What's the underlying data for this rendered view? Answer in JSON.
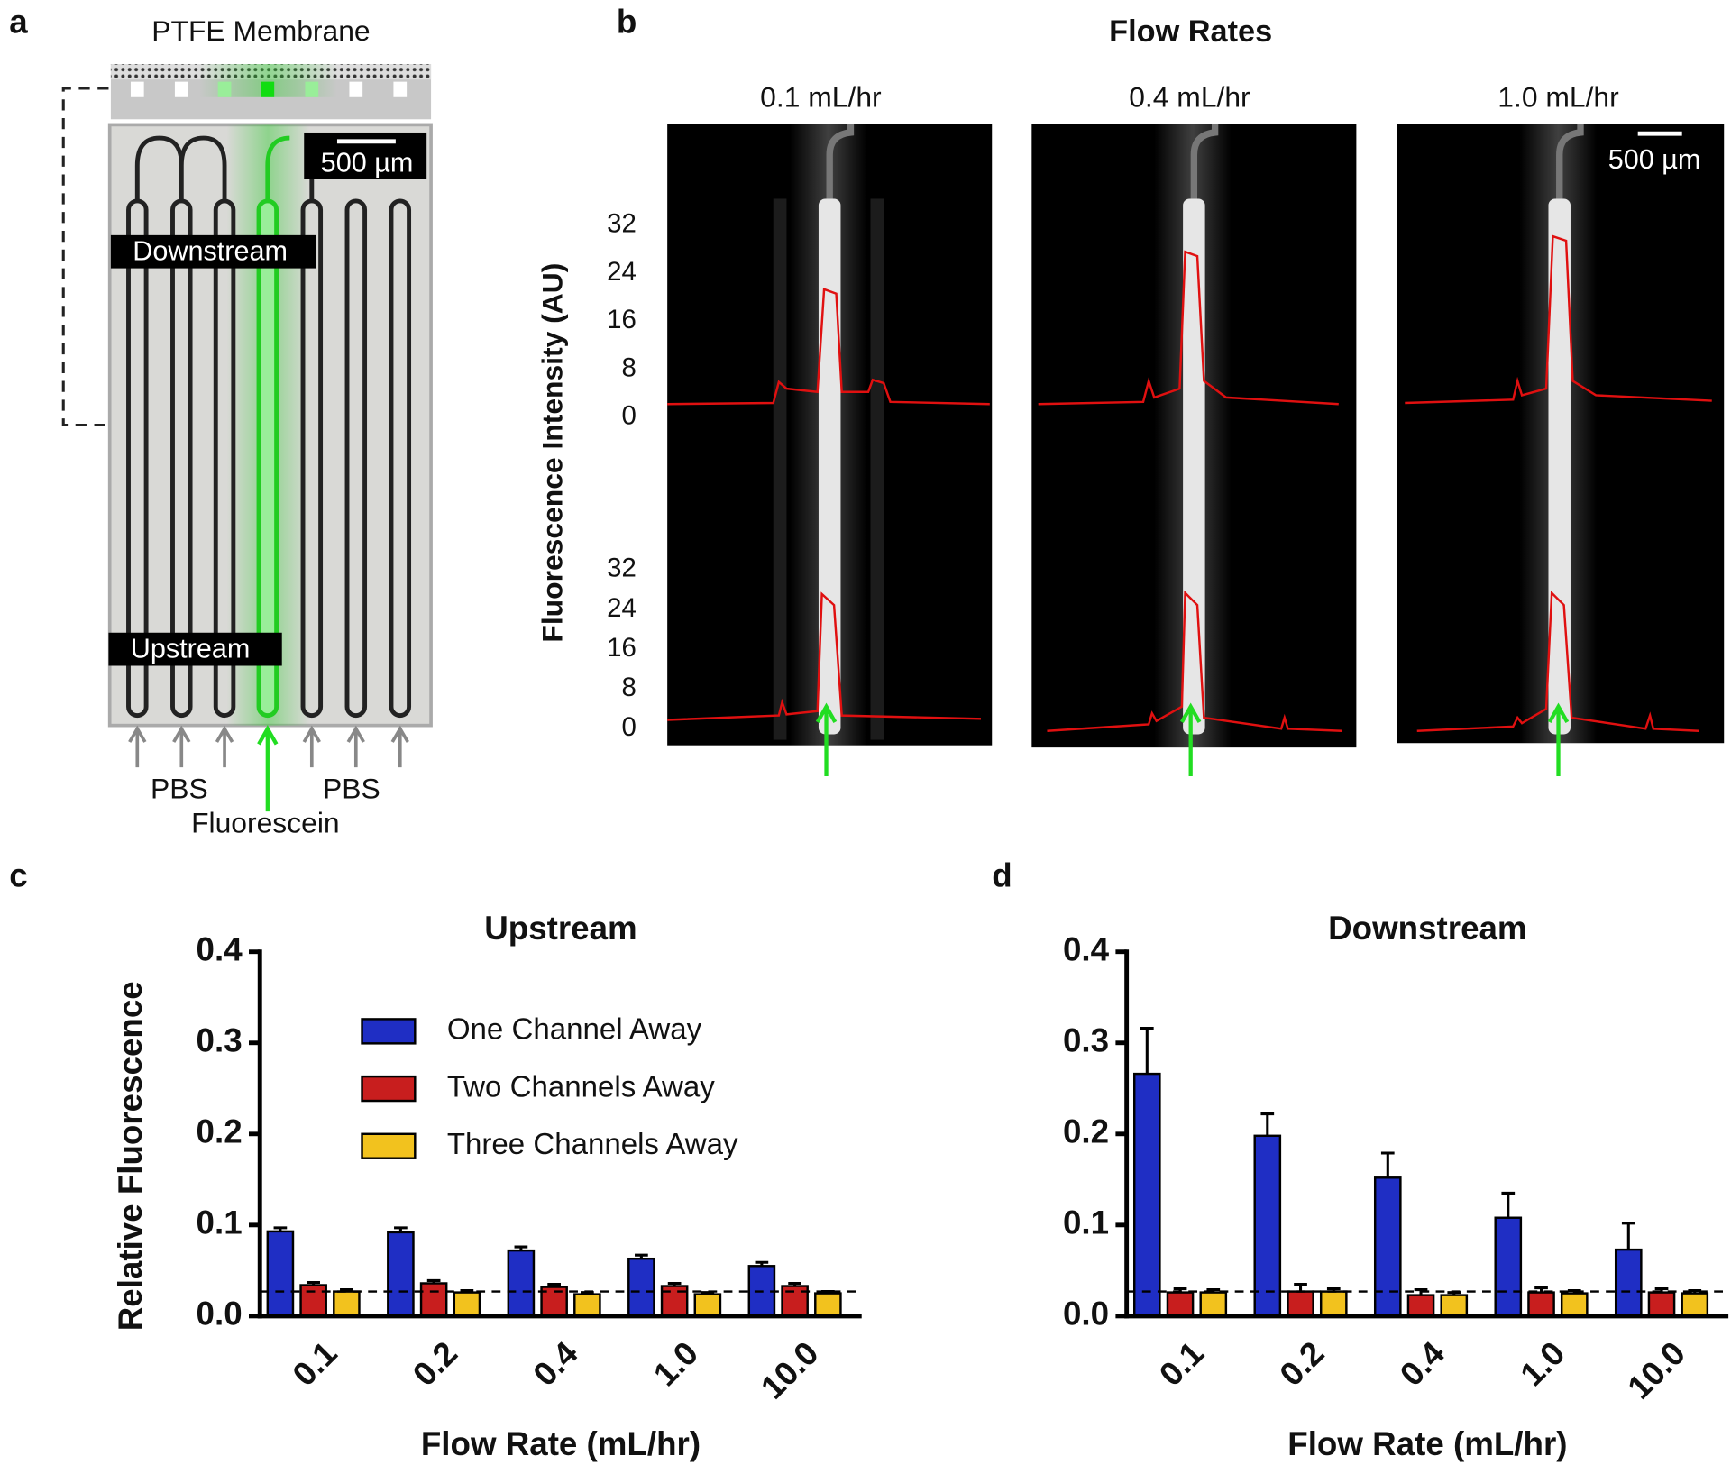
{
  "panel_labels": [
    "a",
    "b",
    "c",
    "d"
  ],
  "panel_a": {
    "membrane": "PTFE Membrane",
    "scale_bar": "500 µm",
    "downstream": "Downstream",
    "upstream": "Upstream",
    "inlets": [
      "PBS",
      "PBS",
      "Fluorescein"
    ]
  },
  "panel_b": {
    "title": "Flow Rates",
    "images": [
      "0.1 mL/hr",
      "0.4 mL/hr",
      "1.0 mL/hr"
    ],
    "scale_bar": "500 µm",
    "ylabel": "Fluorescence Intensity (AU)",
    "yticks_top": [
      0,
      8,
      16,
      24,
      32
    ],
    "yticks_bottom": [
      0,
      8,
      16,
      24,
      32
    ]
  },
  "chart_data": [
    {
      "type": "bar",
      "title": "Upstream",
      "xlabel": "Flow Rate (mL/hr)",
      "ylabel": "Relative Fluorescence",
      "categories": [
        "0.1",
        "0.2",
        "0.4",
        "1.0",
        "10.0"
      ],
      "series": [
        {
          "name": "One Channel Away",
          "color": "#1f2ec4",
          "values": [
            0.093,
            0.092,
            0.072,
            0.063,
            0.055
          ],
          "errors": [
            0.004,
            0.005,
            0.004,
            0.004,
            0.004
          ]
        },
        {
          "name": "Two Channels Away",
          "color": "#c81e1e",
          "values": [
            0.034,
            0.036,
            0.032,
            0.033,
            0.033
          ],
          "errors": [
            0.003,
            0.003,
            0.003,
            0.003,
            0.003
          ]
        },
        {
          "name": "Three Channels Away",
          "color": "#f2c21e",
          "values": [
            0.027,
            0.026,
            0.024,
            0.024,
            0.025
          ],
          "errors": [
            0.002,
            0.002,
            0.002,
            0.002,
            0.002
          ]
        }
      ],
      "ylim": [
        0,
        0.4
      ],
      "yticks": [
        {
          "value": 0,
          "label": "0.0"
        },
        0.1,
        0.2,
        0.3,
        0.4
      ],
      "reference_line": 0.027,
      "legend": "upper center"
    },
    {
      "type": "bar",
      "title": "Downstream",
      "xlabel": "Flow Rate (mL/hr)",
      "categories": [
        "0.1",
        "0.2",
        "0.4",
        "1.0",
        "10.0"
      ],
      "series": [
        {
          "color": "#1f2ec4",
          "values": [
            0.266,
            0.198,
            0.152,
            0.108,
            0.073
          ],
          "errors": [
            0.05,
            0.024,
            0.027,
            0.027,
            0.029
          ]
        },
        {
          "color": "#c81e1e",
          "values": [
            0.026,
            0.027,
            0.023,
            0.026,
            0.026
          ],
          "errors": [
            0.004,
            0.008,
            0.006,
            0.005,
            0.004
          ]
        },
        {
          "color": "#f2c21e",
          "values": [
            0.026,
            0.027,
            0.023,
            0.025,
            0.025
          ],
          "errors": [
            0.003,
            0.003,
            0.003,
            0.003,
            0.003
          ]
        }
      ],
      "ylim": [
        0,
        0.4
      ],
      "yticks": [
        {
          "value": 0,
          "label": "0.0"
        },
        0.1,
        0.2,
        0.3,
        0.4
      ],
      "reference_line": 0.027
    }
  ]
}
